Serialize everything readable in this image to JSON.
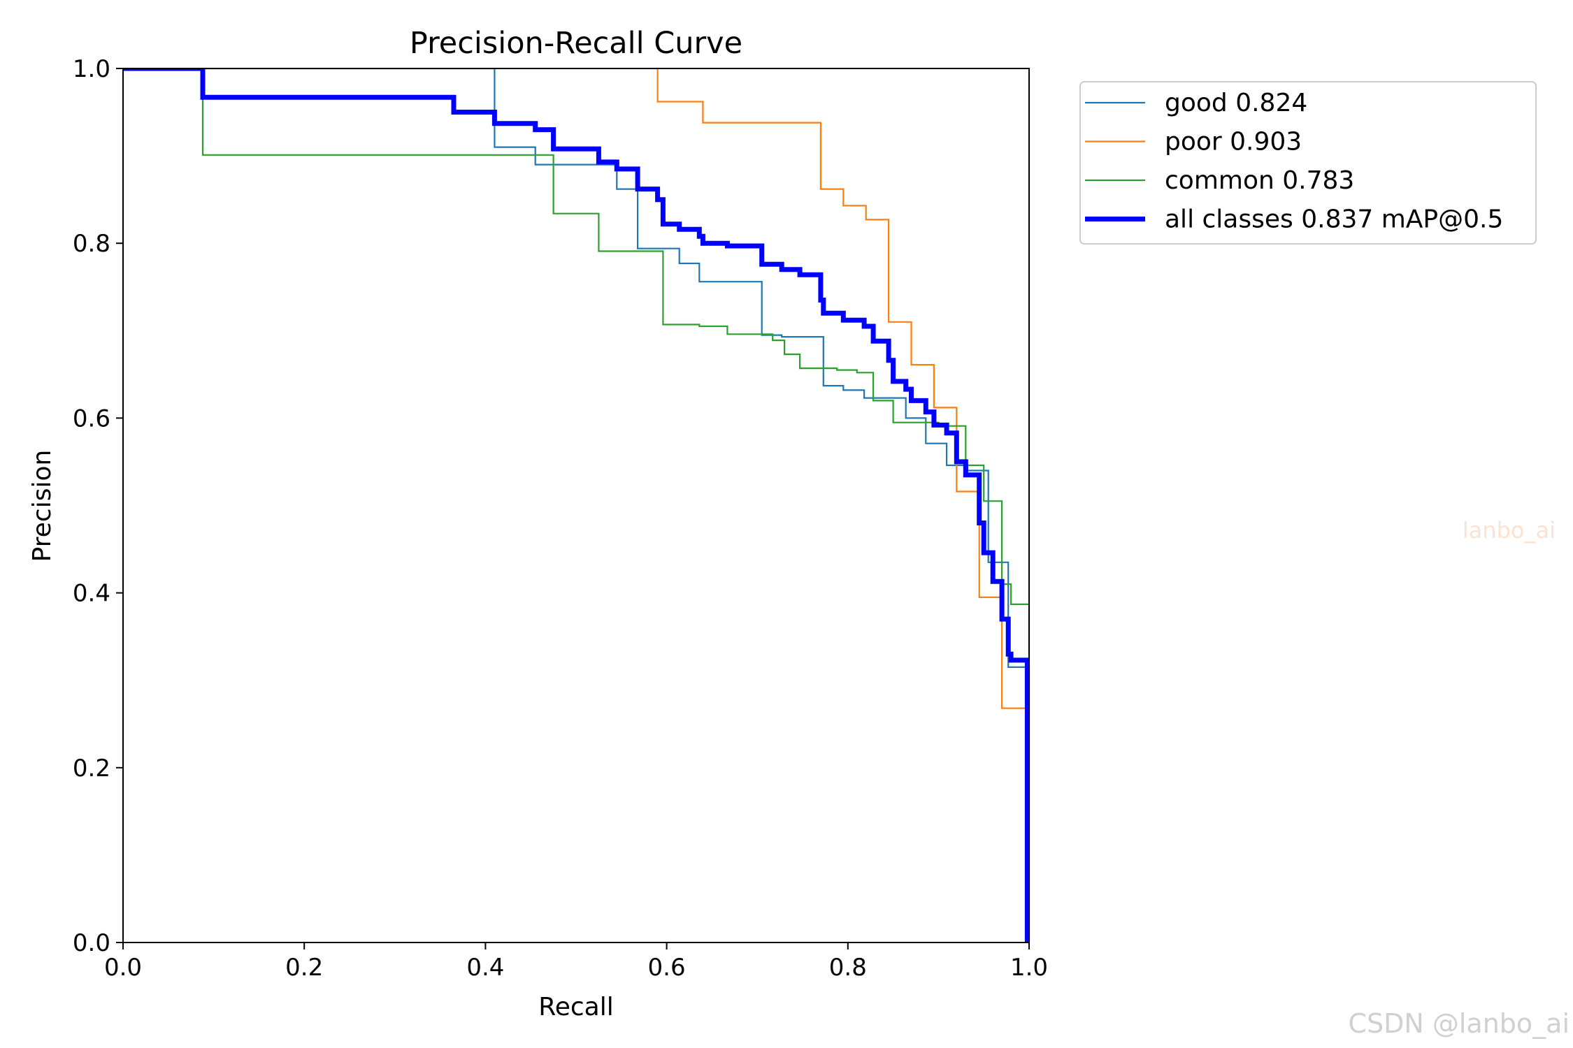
{
  "chart_data": {
    "type": "line",
    "title": "Precision-Recall Curve",
    "xlabel": "Recall",
    "ylabel": "Precision",
    "xlim": [
      0,
      1
    ],
    "ylim": [
      0,
      1
    ],
    "xticks": [
      "0.0",
      "0.2",
      "0.4",
      "0.6",
      "0.8",
      "1.0"
    ],
    "yticks": [
      "0.0",
      "0.2",
      "0.4",
      "0.6",
      "0.8",
      "1.0"
    ],
    "grid": false,
    "legend_position": "outside-top-right",
    "series": [
      {
        "name": "good 0.824",
        "color": "#1f77b4",
        "width": "thin",
        "points": [
          [
            0,
            1
          ],
          [
            0.365,
            1
          ],
          [
            0.365,
            1
          ],
          [
            0.41,
            1
          ],
          [
            0.41,
            0.91
          ],
          [
            0.455,
            0.91
          ],
          [
            0.455,
            0.89
          ],
          [
            0.545,
            0.89
          ],
          [
            0.545,
            0.862
          ],
          [
            0.568,
            0.862
          ],
          [
            0.568,
            0.794
          ],
          [
            0.614,
            0.794
          ],
          [
            0.614,
            0.777
          ],
          [
            0.636,
            0.777
          ],
          [
            0.636,
            0.756
          ],
          [
            0.705,
            0.756
          ],
          [
            0.705,
            0.695
          ],
          [
            0.727,
            0.695
          ],
          [
            0.727,
            0.693
          ],
          [
            0.773,
            0.693
          ],
          [
            0.773,
            0.637
          ],
          [
            0.795,
            0.637
          ],
          [
            0.795,
            0.632
          ],
          [
            0.818,
            0.632
          ],
          [
            0.818,
            0.623
          ],
          [
            0.864,
            0.623
          ],
          [
            0.864,
            0.6
          ],
          [
            0.886,
            0.6
          ],
          [
            0.886,
            0.571
          ],
          [
            0.909,
            0.571
          ],
          [
            0.909,
            0.546
          ],
          [
            0.932,
            0.546
          ],
          [
            0.932,
            0.54
          ],
          [
            0.955,
            0.54
          ],
          [
            0.955,
            0.435
          ],
          [
            0.977,
            0.435
          ],
          [
            0.977,
            0.315
          ],
          [
            1,
            0.315
          ],
          [
            1,
            0
          ]
        ]
      },
      {
        "name": "poor 0.903",
        "color": "#ff7f0e",
        "width": "thin",
        "points": [
          [
            0,
            1
          ],
          [
            0.59,
            1
          ],
          [
            0.59,
            0.962
          ],
          [
            0.64,
            0.962
          ],
          [
            0.64,
            0.938
          ],
          [
            0.77,
            0.938
          ],
          [
            0.77,
            0.862
          ],
          [
            0.795,
            0.862
          ],
          [
            0.795,
            0.843
          ],
          [
            0.82,
            0.843
          ],
          [
            0.82,
            0.827
          ],
          [
            0.845,
            0.827
          ],
          [
            0.845,
            0.71
          ],
          [
            0.87,
            0.71
          ],
          [
            0.87,
            0.661
          ],
          [
            0.895,
            0.661
          ],
          [
            0.895,
            0.612
          ],
          [
            0.92,
            0.612
          ],
          [
            0.92,
            0.516
          ],
          [
            0.945,
            0.516
          ],
          [
            0.945,
            0.395
          ],
          [
            0.97,
            0.395
          ],
          [
            0.97,
            0.268
          ],
          [
            0.998,
            0.268
          ],
          [
            0.998,
            0
          ]
        ]
      },
      {
        "name": "common 0.783",
        "color": "#2ca02c",
        "width": "thin",
        "points": [
          [
            0,
            1
          ],
          [
            0.088,
            1
          ],
          [
            0.088,
            0.901
          ],
          [
            0.475,
            0.901
          ],
          [
            0.475,
            0.834
          ],
          [
            0.525,
            0.834
          ],
          [
            0.525,
            0.791
          ],
          [
            0.596,
            0.791
          ],
          [
            0.596,
            0.707
          ],
          [
            0.636,
            0.707
          ],
          [
            0.636,
            0.705
          ],
          [
            0.667,
            0.705
          ],
          [
            0.667,
            0.696
          ],
          [
            0.717,
            0.696
          ],
          [
            0.717,
            0.689
          ],
          [
            0.73,
            0.689
          ],
          [
            0.73,
            0.673
          ],
          [
            0.747,
            0.673
          ],
          [
            0.747,
            0.657
          ],
          [
            0.788,
            0.657
          ],
          [
            0.788,
            0.655
          ],
          [
            0.81,
            0.655
          ],
          [
            0.81,
            0.652
          ],
          [
            0.828,
            0.652
          ],
          [
            0.828,
            0.62
          ],
          [
            0.85,
            0.62
          ],
          [
            0.85,
            0.595
          ],
          [
            0.9,
            0.595
          ],
          [
            0.9,
            0.591
          ],
          [
            0.93,
            0.591
          ],
          [
            0.93,
            0.546
          ],
          [
            0.95,
            0.546
          ],
          [
            0.95,
            0.505
          ],
          [
            0.97,
            0.505
          ],
          [
            0.97,
            0.41
          ],
          [
            0.98,
            0.41
          ],
          [
            0.98,
            0.387
          ],
          [
            1,
            0.387
          ],
          [
            1,
            0
          ]
        ]
      },
      {
        "name": "all classes 0.837 mAP@0.5",
        "color": "#0000ff",
        "width": "thick",
        "points": [
          [
            0,
            1
          ],
          [
            0.088,
            1
          ],
          [
            0.088,
            0.967
          ],
          [
            0.365,
            0.967
          ],
          [
            0.365,
            0.95
          ],
          [
            0.41,
            0.95
          ],
          [
            0.41,
            0.937
          ],
          [
            0.455,
            0.937
          ],
          [
            0.455,
            0.93
          ],
          [
            0.475,
            0.93
          ],
          [
            0.475,
            0.908
          ],
          [
            0.525,
            0.908
          ],
          [
            0.525,
            0.893
          ],
          [
            0.545,
            0.893
          ],
          [
            0.545,
            0.885
          ],
          [
            0.568,
            0.885
          ],
          [
            0.568,
            0.862
          ],
          [
            0.59,
            0.862
          ],
          [
            0.59,
            0.85
          ],
          [
            0.596,
            0.85
          ],
          [
            0.596,
            0.822
          ],
          [
            0.614,
            0.822
          ],
          [
            0.614,
            0.816
          ],
          [
            0.636,
            0.816
          ],
          [
            0.636,
            0.808
          ],
          [
            0.64,
            0.808
          ],
          [
            0.64,
            0.8
          ],
          [
            0.667,
            0.8
          ],
          [
            0.667,
            0.797
          ],
          [
            0.705,
            0.797
          ],
          [
            0.705,
            0.776
          ],
          [
            0.727,
            0.776
          ],
          [
            0.727,
            0.77
          ],
          [
            0.747,
            0.77
          ],
          [
            0.747,
            0.764
          ],
          [
            0.77,
            0.764
          ],
          [
            0.77,
            0.735
          ],
          [
            0.773,
            0.735
          ],
          [
            0.773,
            0.72
          ],
          [
            0.795,
            0.72
          ],
          [
            0.795,
            0.712
          ],
          [
            0.818,
            0.712
          ],
          [
            0.818,
            0.705
          ],
          [
            0.828,
            0.705
          ],
          [
            0.828,
            0.688
          ],
          [
            0.845,
            0.688
          ],
          [
            0.845,
            0.666
          ],
          [
            0.85,
            0.666
          ],
          [
            0.85,
            0.642
          ],
          [
            0.864,
            0.642
          ],
          [
            0.864,
            0.633
          ],
          [
            0.87,
            0.633
          ],
          [
            0.87,
            0.62
          ],
          [
            0.886,
            0.62
          ],
          [
            0.886,
            0.607
          ],
          [
            0.895,
            0.607
          ],
          [
            0.895,
            0.592
          ],
          [
            0.909,
            0.592
          ],
          [
            0.909,
            0.583
          ],
          [
            0.92,
            0.583
          ],
          [
            0.92,
            0.55
          ],
          [
            0.93,
            0.55
          ],
          [
            0.93,
            0.535
          ],
          [
            0.945,
            0.535
          ],
          [
            0.945,
            0.48
          ],
          [
            0.95,
            0.48
          ],
          [
            0.95,
            0.446
          ],
          [
            0.96,
            0.446
          ],
          [
            0.96,
            0.413
          ],
          [
            0.97,
            0.413
          ],
          [
            0.97,
            0.37
          ],
          [
            0.977,
            0.37
          ],
          [
            0.977,
            0.33
          ],
          [
            0.98,
            0.33
          ],
          [
            0.98,
            0.323
          ],
          [
            0.998,
            0.323
          ],
          [
            0.998,
            0
          ]
        ]
      }
    ]
  },
  "watermarks": {
    "middle": "lanbo_ai",
    "corner": "CSDN @lanbo_ai"
  }
}
